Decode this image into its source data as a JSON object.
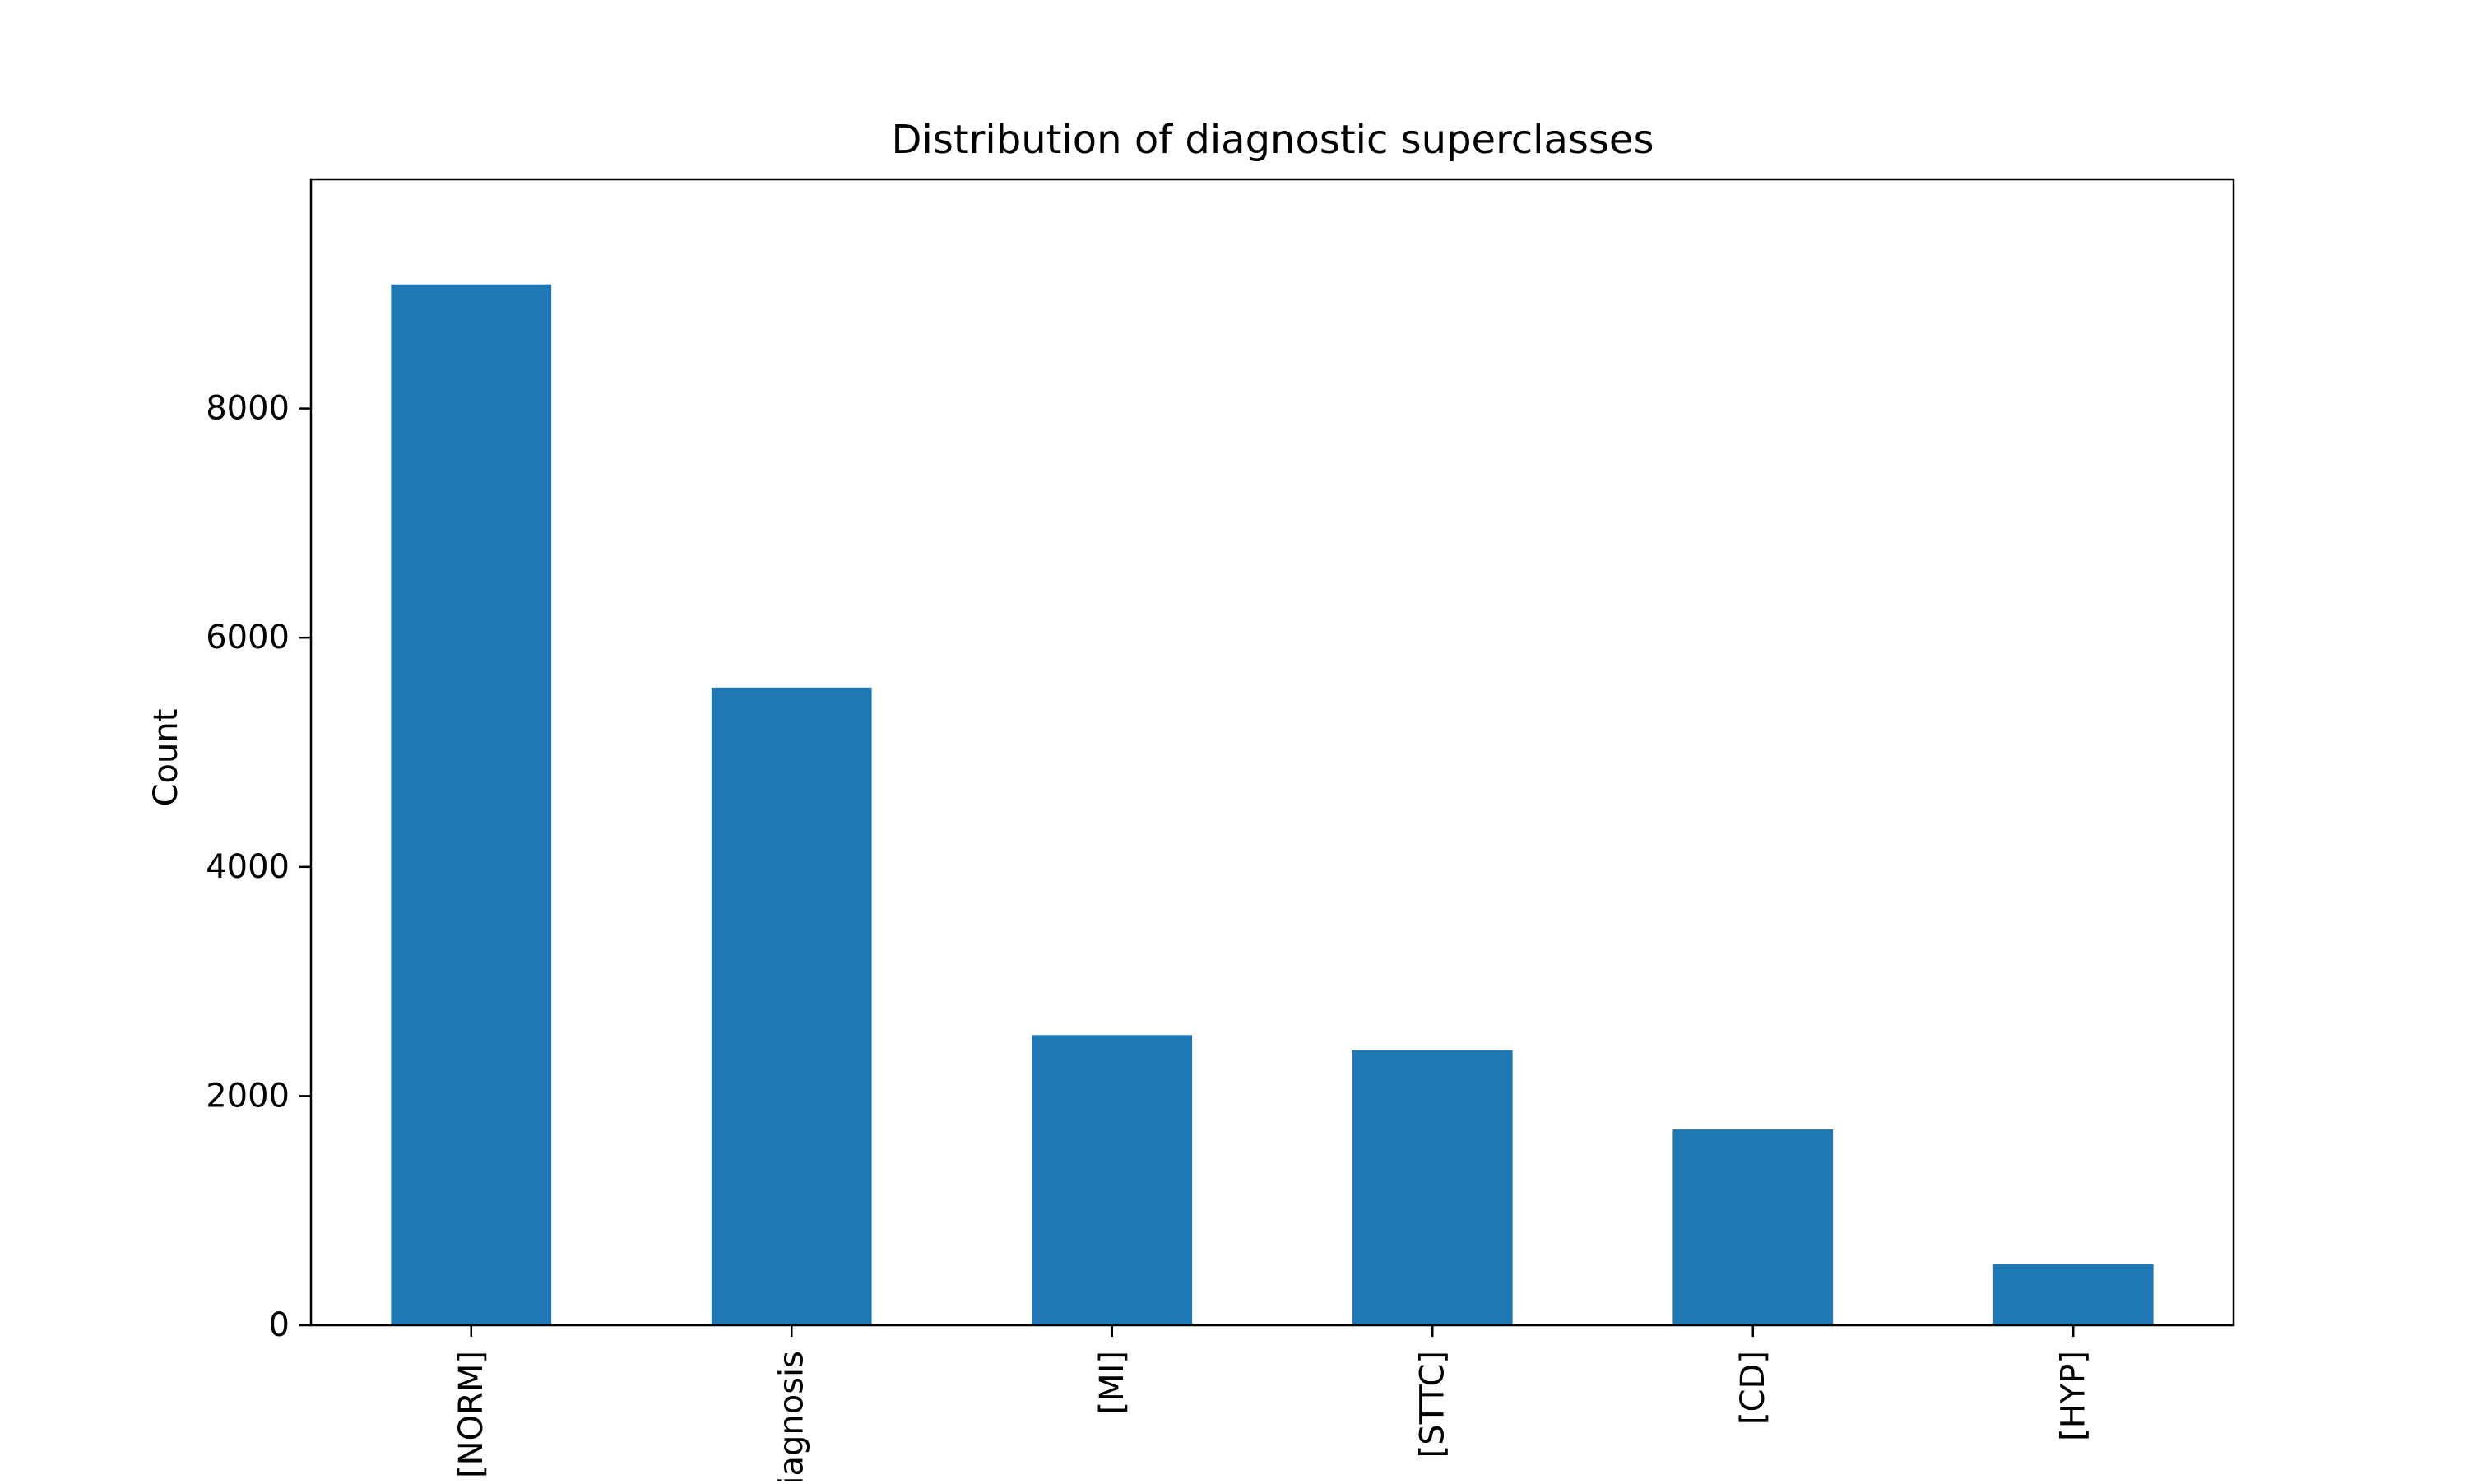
{
  "chart_data": {
    "type": "bar",
    "title": "Distribution of diagnostic superclasses",
    "xlabel": "",
    "ylabel": "Count",
    "categories": [
      "[NORM]",
      "no diagnosis",
      "[MI]",
      "[STTC]",
      "[CD]",
      "[HYP]"
    ],
    "values": [
      9083,
      5565,
      2532,
      2400,
      1708,
      535
    ],
    "ylim": [
      0,
      10000
    ],
    "yticks": [
      0,
      2000,
      4000,
      6000,
      8000
    ],
    "grid": false,
    "legend": "none",
    "bar_color": "#1f77b4"
  }
}
